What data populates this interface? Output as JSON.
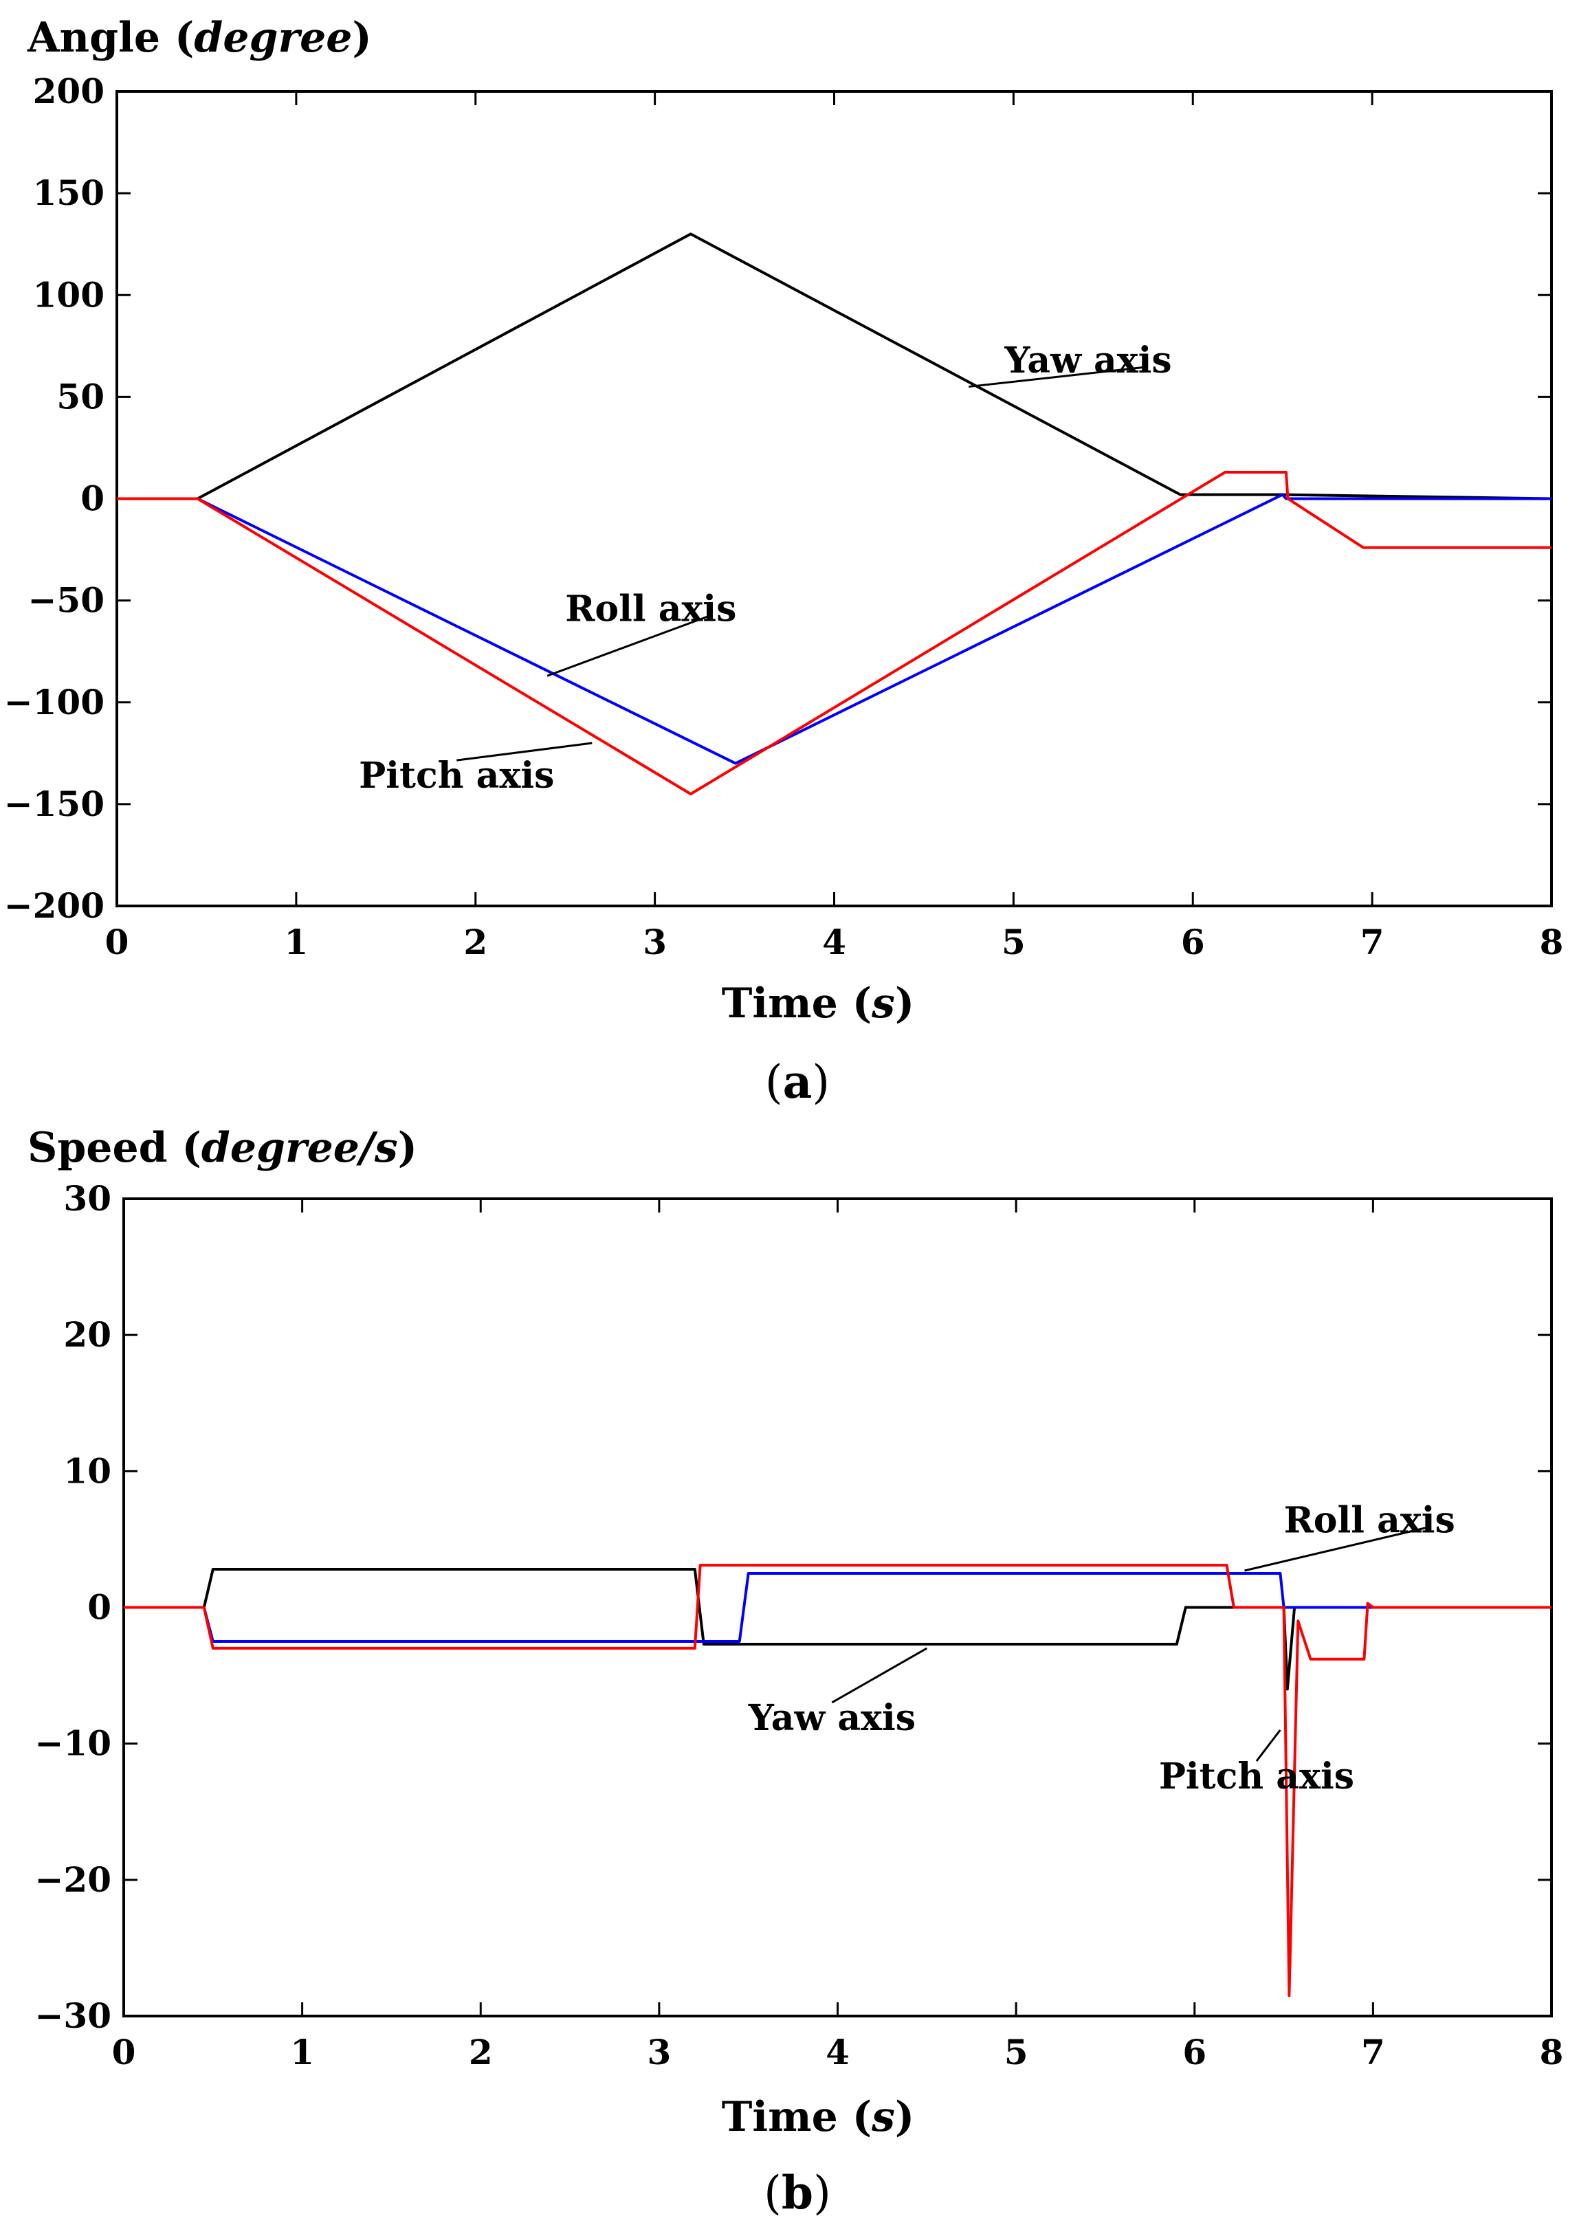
{
  "chart_data": [
    {
      "type": "line",
      "panel": "(a)",
      "panel_letter": "a",
      "ylabel_text": "Angle (",
      "ylabel_italic": "degree",
      "ylabel_close": ")",
      "xlabel_text": "Time (",
      "xlabel_italic": "s",
      "xlabel_close": ")",
      "xlim": [
        0,
        8
      ],
      "ylim": [
        -200,
        200
      ],
      "xticks": [
        0,
        1,
        2,
        3,
        4,
        5,
        6,
        7,
        8
      ],
      "yticks": [
        200,
        150,
        100,
        50,
        0,
        -50,
        -100,
        -150,
        -200
      ],
      "ytick_labels": [
        "200",
        "150",
        "100",
        "50",
        "0",
        "−50",
        "−100",
        "−150",
        "−200"
      ],
      "series": [
        {
          "name": "Yaw axis",
          "color": "#000000",
          "x": [
            0,
            0.45,
            3.2,
            5.93,
            6.5,
            8.0
          ],
          "y": [
            0,
            0,
            130,
            2,
            2,
            0
          ]
        },
        {
          "name": "Roll axis",
          "color": "#0000ff",
          "x": [
            0,
            0.45,
            3.45,
            6.5,
            6.52,
            8.0
          ],
          "y": [
            0,
            0,
            -130,
            2,
            0,
            0
          ]
        },
        {
          "name": "Pitch axis",
          "color": "#ff0000",
          "x": [
            0,
            0.45,
            3.2,
            6.18,
            6.52,
            6.53,
            6.95,
            8.0
          ],
          "y": [
            0,
            0,
            -145,
            13,
            13,
            0,
            -24,
            -24
          ]
        }
      ],
      "annotations": [
        {
          "text": "Yaw axis",
          "x": 4.95,
          "y": 62,
          "point": [
            4.75,
            55
          ]
        },
        {
          "text": "Roll axis",
          "x": 2.5,
          "y": -60,
          "point": [
            2.4,
            -87
          ]
        },
        {
          "text": "Pitch axis",
          "x": 1.35,
          "y": -142,
          "point": [
            2.65,
            -120
          ]
        }
      ]
    },
    {
      "type": "line",
      "panel": "(b)",
      "panel_letter": "b",
      "ylabel_text": "Speed (",
      "ylabel_italic": "degree/s",
      "ylabel_close": ")",
      "xlabel_text": "Time (",
      "xlabel_italic": "s",
      "xlabel_close": ")",
      "xlim": [
        0,
        8
      ],
      "ylim": [
        -30,
        30
      ],
      "xticks": [
        0,
        1,
        2,
        3,
        4,
        5,
        6,
        7,
        8
      ],
      "yticks": [
        30,
        20,
        10,
        0,
        -10,
        -20,
        -30
      ],
      "ytick_labels": [
        "30",
        "20",
        "10",
        "0",
        "−10",
        "−20",
        "−30"
      ],
      "series": [
        {
          "name": "Yaw axis",
          "color": "#000000",
          "x": [
            0,
            0.45,
            0.5,
            3.2,
            3.25,
            5.9,
            5.95,
            6.45,
            6.5,
            6.52,
            6.56,
            8.0
          ],
          "y": [
            0,
            0,
            2.8,
            2.8,
            -2.7,
            -2.7,
            0,
            0,
            0,
            -6,
            0,
            0
          ]
        },
        {
          "name": "Roll axis",
          "color": "#0000ff",
          "x": [
            0,
            0.45,
            0.5,
            3.2,
            3.25,
            3.45,
            3.5,
            6.48,
            6.5,
            6.55,
            8.0
          ],
          "y": [
            0,
            0,
            -2.5,
            -2.5,
            -2.5,
            -2.5,
            2.5,
            2.5,
            0,
            0,
            0
          ]
        },
        {
          "name": "Pitch axis",
          "color": "#ff0000",
          "x": [
            0,
            0.45,
            0.5,
            3.2,
            3.23,
            6.18,
            6.22,
            6.5,
            6.53,
            6.58,
            6.65,
            6.95,
            6.97,
            7.0,
            8.0
          ],
          "y": [
            0,
            0,
            -3,
            -3,
            3.1,
            3.1,
            0,
            0,
            -28.5,
            -1,
            -3.8,
            -3.8,
            0.3,
            0,
            0
          ]
        }
      ],
      "annotations": [
        {
          "text": "Roll axis",
          "x": 6.5,
          "y": 5.5,
          "point": [
            6.28,
            2.7
          ]
        },
        {
          "text": "Yaw axis",
          "x": 3.5,
          "y": -9,
          "point": [
            4.5,
            -3
          ]
        },
        {
          "text": "Pitch axis",
          "x": 5.8,
          "y": -13.3,
          "point": [
            6.48,
            -9
          ]
        }
      ]
    }
  ]
}
